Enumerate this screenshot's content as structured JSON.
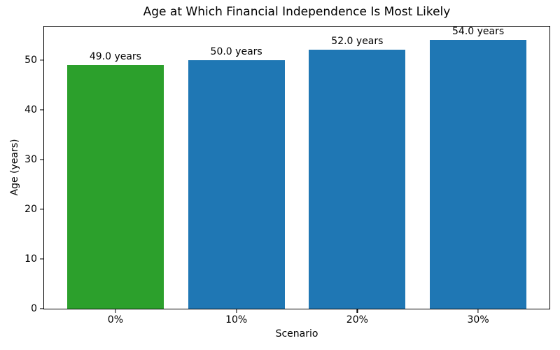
{
  "chart_data": {
    "type": "bar",
    "title": "Age at Which Financial Independence Is Most Likely",
    "xlabel": "Scenario",
    "ylabel": "Age (years)",
    "categories": [
      "0%",
      "10%",
      "20%",
      "30%"
    ],
    "values": [
      49.0,
      50.0,
      52.0,
      54.0
    ],
    "bar_labels": [
      "49.0 years",
      "50.0 years",
      "52.0 years",
      "54.0 years"
    ],
    "bar_colors": [
      "#2ca02c",
      "#1f77b4",
      "#1f77b4",
      "#1f77b4"
    ],
    "ylim": [
      0,
      56.7
    ],
    "yticks": [
      0,
      10,
      20,
      30,
      40,
      50
    ],
    "bar_width_fraction": 0.8,
    "x_edge_margin": 0.19,
    "grid": false,
    "legend_position": "none",
    "background_color": "#ffffff",
    "spine_color": "#000000",
    "text_color": "#000000"
  }
}
